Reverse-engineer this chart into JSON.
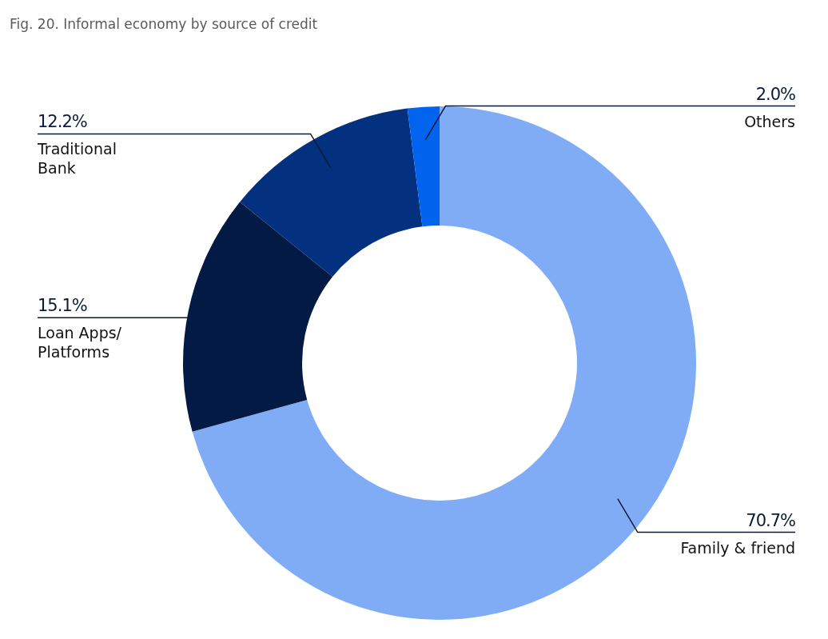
{
  "chart_data": {
    "type": "donut",
    "title": "Fig. 20. Informal economy by source of credit",
    "categories": [
      "Family & friend",
      "Loan Apps/ Platforms",
      "Traditional Bank",
      "Others"
    ],
    "values": [
      70.7,
      15.1,
      12.2,
      2.0
    ],
    "value_labels": [
      "70.7%",
      "15.1%",
      "12.2%",
      "2.0%"
    ],
    "colors": [
      "#80acf6",
      "#031a45",
      "#03307f",
      "#0263ef"
    ],
    "legend": false
  }
}
